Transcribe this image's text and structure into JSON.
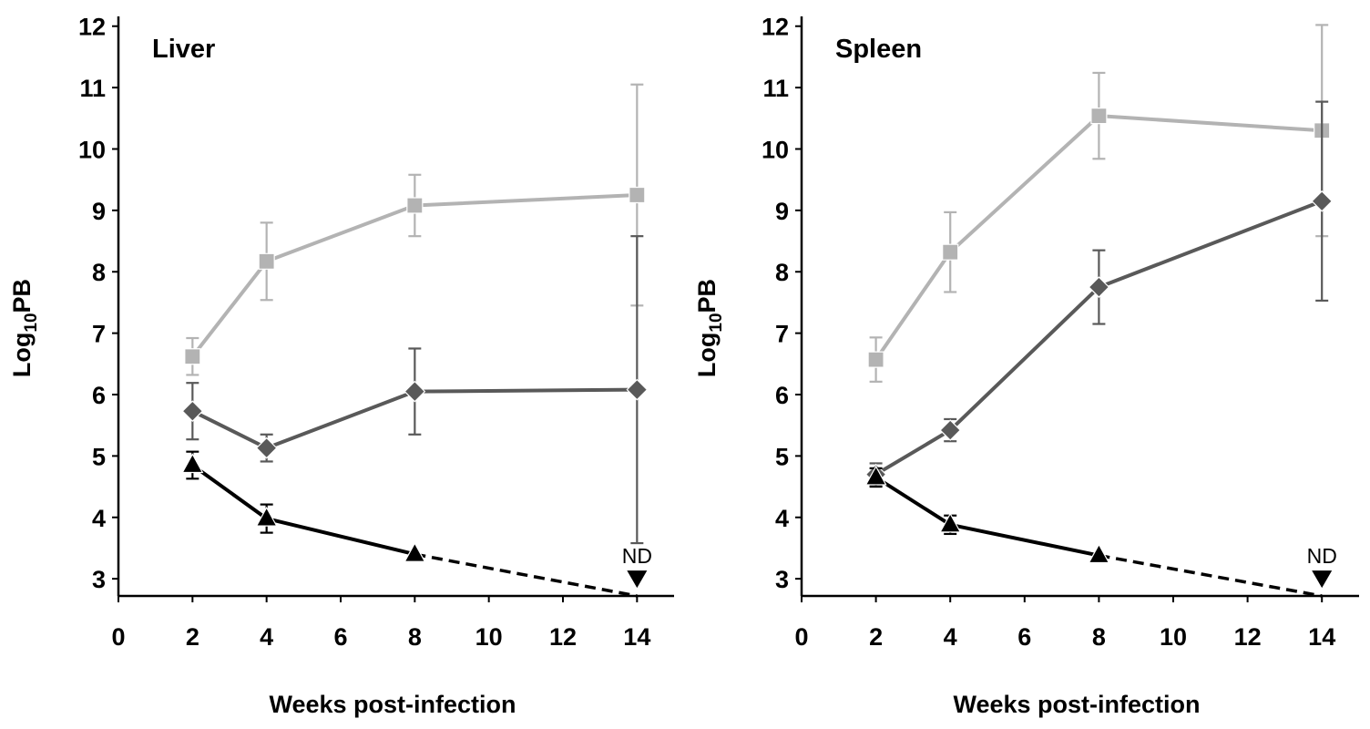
{
  "colors": {
    "light_series": "#b3b3b3",
    "mid_series": "#595959",
    "dark_series": "#000000",
    "axis": "#000000"
  },
  "chart_data": [
    {
      "type": "line",
      "title": "Liver",
      "xlabel": "Weeks post-infection",
      "ylabel": {
        "prefix": "Log",
        "subscript": "10",
        "suffix": "PB"
      },
      "xlim": [
        0,
        15
      ],
      "ylim": [
        2.72,
        12.1
      ],
      "xticks": [
        0,
        2,
        4,
        6,
        8,
        10,
        12,
        14
      ],
      "yticks": [
        3,
        4,
        5,
        6,
        7,
        8,
        9,
        10,
        11,
        12
      ],
      "series": [
        {
          "marker": "square",
          "color": "#b3b3b3",
          "x": [
            2,
            4,
            8,
            14
          ],
          "y": [
            6.62,
            8.17,
            9.08,
            9.25
          ],
          "err": [
            0.3,
            0.63,
            0.5,
            1.8
          ]
        },
        {
          "marker": "diamond",
          "color": "#595959",
          "x": [
            2,
            4,
            8,
            14
          ],
          "y": [
            5.73,
            5.13,
            6.05,
            6.08
          ],
          "err": [
            0.46,
            0.22,
            0.7,
            2.5
          ]
        },
        {
          "marker": "triangle-up",
          "color": "#000000",
          "x": [
            2,
            4,
            8
          ],
          "y": [
            4.85,
            3.98,
            3.4
          ],
          "err": [
            0.22,
            0.23,
            0.0
          ],
          "dashed_extension": {
            "x": [
              8,
              14
            ],
            "y": [
              3.4,
              2.72
            ]
          }
        }
      ],
      "annotations": [
        {
          "text": "ND",
          "x": 14,
          "y": 3.0,
          "marker": "triangle-down"
        }
      ]
    },
    {
      "type": "line",
      "title": "Spleen",
      "xlabel": "Weeks post-infection",
      "ylabel": {
        "prefix": "Log",
        "subscript": "10",
        "suffix": "PB"
      },
      "xlim": [
        0,
        15
      ],
      "ylim": [
        2.72,
        12.1
      ],
      "xticks": [
        0,
        2,
        4,
        6,
        8,
        10,
        12,
        14
      ],
      "yticks": [
        3,
        4,
        5,
        6,
        7,
        8,
        9,
        10,
        11,
        12
      ],
      "series": [
        {
          "marker": "square",
          "color": "#b3b3b3",
          "x": [
            2,
            4,
            8,
            14
          ],
          "y": [
            6.57,
            8.32,
            10.54,
            10.3
          ],
          "err": [
            0.36,
            0.65,
            0.7,
            1.72
          ]
        },
        {
          "marker": "diamond",
          "color": "#595959",
          "x": [
            2,
            4,
            8,
            14
          ],
          "y": [
            4.7,
            5.42,
            7.75,
            9.15
          ],
          "err": [
            0.18,
            0.18,
            0.6,
            1.62
          ]
        },
        {
          "marker": "triangle-up",
          "color": "#000000",
          "x": [
            2,
            4,
            8
          ],
          "y": [
            4.65,
            3.88,
            3.38
          ],
          "err": [
            0.15,
            0.15,
            0.0
          ],
          "dashed_extension": {
            "x": [
              8,
              14
            ],
            "y": [
              3.38,
              2.72
            ]
          }
        }
      ],
      "annotations": [
        {
          "text": "ND",
          "x": 14,
          "y": 3.0,
          "marker": "triangle-down"
        }
      ]
    }
  ]
}
